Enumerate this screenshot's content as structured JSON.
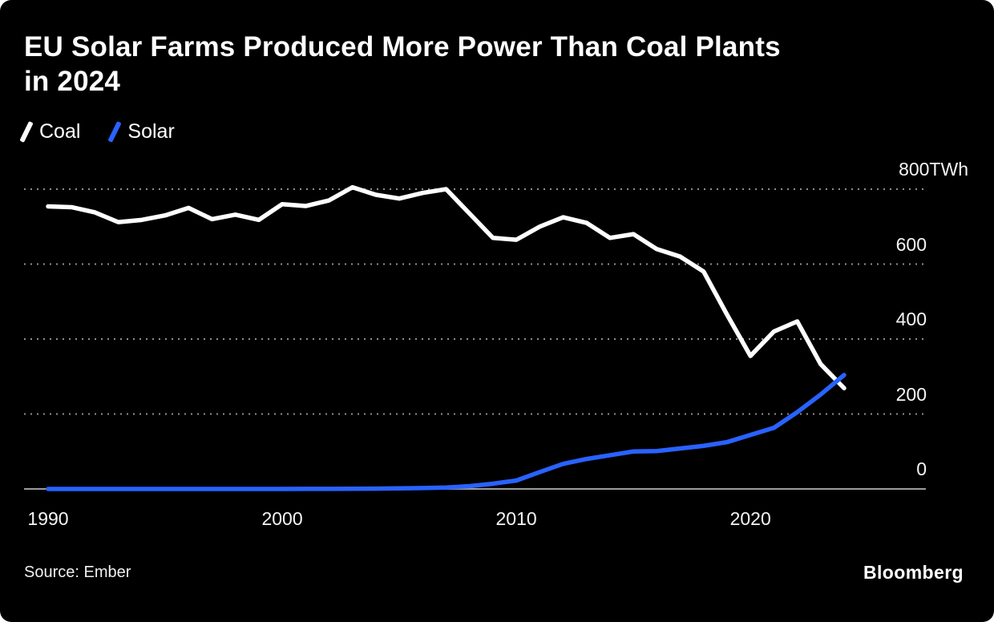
{
  "header": {
    "title": "EU Solar Farms Produced More Power Than Coal Plants in 2024"
  },
  "legend": [
    {
      "label": "Coal",
      "color": "#ffffff"
    },
    {
      "label": "Solar",
      "color": "#2962ff"
    }
  ],
  "footer": {
    "source": "Source: Ember",
    "brand": "Bloomberg"
  },
  "chart_data": {
    "type": "line",
    "title": "EU Solar Farms Produced More Power Than Coal Plants in 2024",
    "xlabel": "",
    "ylabel": "",
    "unit": "TWh",
    "grid": "horizontal-dotted",
    "legend_position": "top-left",
    "xlim": [
      1990,
      2024
    ],
    "ylim": [
      0,
      820
    ],
    "xticks": [
      1990,
      2000,
      2010,
      2020
    ],
    "yticks": {
      "values": [
        0,
        200,
        400,
        600,
        800
      ],
      "labels": [
        "0",
        "200",
        "400",
        "600",
        "800TWh"
      ]
    },
    "x": [
      1990,
      1991,
      1992,
      1993,
      1994,
      1995,
      1996,
      1997,
      1998,
      1999,
      2000,
      2001,
      2002,
      2003,
      2004,
      2005,
      2006,
      2007,
      2008,
      2009,
      2010,
      2011,
      2012,
      2013,
      2014,
      2015,
      2016,
      2017,
      2018,
      2019,
      2020,
      2021,
      2022,
      2023,
      2024
    ],
    "series": [
      {
        "name": "Coal",
        "color": "#ffffff",
        "values": [
          754,
          752,
          738,
          712,
          718,
          730,
          750,
          720,
          732,
          718,
          760,
          755,
          770,
          805,
          785,
          775,
          790,
          800,
          735,
          670,
          665,
          700,
          725,
          710,
          670,
          680,
          640,
          620,
          580,
          465,
          355,
          420,
          447,
          333,
          269
        ]
      },
      {
        "name": "Solar",
        "color": "#2962ff",
        "values": [
          0,
          0,
          0,
          0.1,
          0.1,
          0.1,
          0.1,
          0.1,
          0.1,
          0.1,
          0.1,
          0.2,
          0.3,
          0.5,
          0.7,
          1.5,
          2.5,
          3.8,
          7.4,
          14,
          22.5,
          45,
          67,
          80,
          90,
          100,
          101,
          108,
          115,
          125,
          144,
          163,
          205,
          252,
          304
        ]
      }
    ]
  }
}
